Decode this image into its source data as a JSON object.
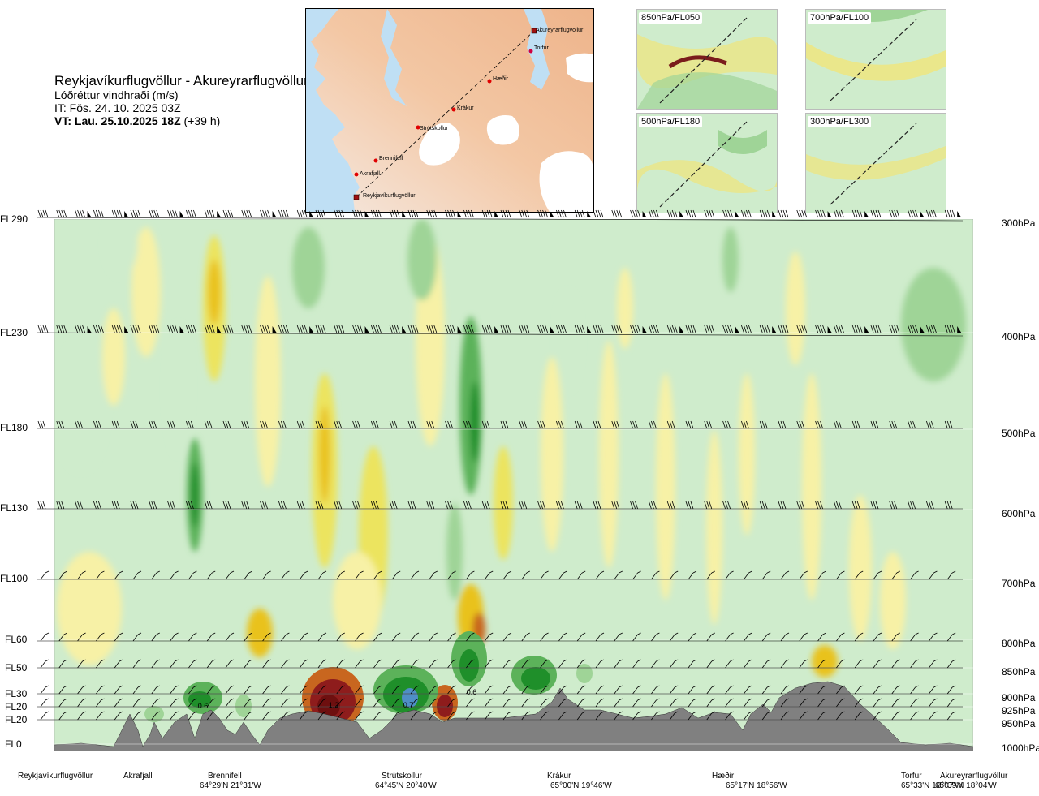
{
  "title": {
    "route": "Reykjavíkurflugvöllur - Akureyrarflugvöllur",
    "variable": "Lóðréttur vindhraði (m/s)",
    "issue_time": "IT: Fös. 24. 10. 2025 03Z",
    "valid_time": "VT: Lau. 25.10.2025 18Z",
    "lead": "(+39 h)"
  },
  "map": {
    "waypoints": [
      "Reykjavíkurflugvöllur",
      "Akrafjall",
      "Brennifell",
      "Strútskollur",
      "Krákur",
      "Hæðir",
      "Torfur",
      "Akureyrarflugvöllur"
    ]
  },
  "mini_maps": [
    {
      "label": "850hPa/FL050"
    },
    {
      "label": "700hPa/FL100"
    },
    {
      "label": "500hPa/FL180"
    },
    {
      "label": "300hPa/FL300"
    }
  ],
  "chart_data": {
    "type": "heatmap",
    "title": "Lóðréttur vindhraði (m/s)",
    "left_axis": [
      "FL290",
      "FL230",
      "FL180",
      "FL130",
      "FL100",
      "FL60",
      "FL50",
      "FL30",
      "FL20",
      "FL20",
      "FL0"
    ],
    "right_axis": [
      "300hPa",
      "400hPa",
      "500hPa",
      "600hPa",
      "700hPa",
      "800hPa",
      "850hPa",
      "900hPa",
      "925hPa",
      "950hPa",
      "1000hPa"
    ],
    "pressure_levels": [
      300,
      400,
      500,
      600,
      700,
      800,
      850,
      900,
      925,
      950,
      1000
    ],
    "contour_labels": [
      "0.6",
      "1.2",
      "0.7",
      "0.6"
    ],
    "colors": {
      "weak_down": "#f7f1a6",
      "moderate_down": "#ece45e",
      "strong_down": "#e9c21b",
      "very_strong_down": "#c8661f",
      "extreme_down": "#8e1c1c",
      "weak_up": "#cfeccc",
      "moderate_up": "#9fd497",
      "strong_up": "#5cb25a",
      "very_strong_up": "#1f8f2a",
      "extreme_up": "#4f8ec6",
      "terrain": "#808080"
    },
    "bottom_sites": [
      {
        "name": "Reykjavíkurflugvöllur",
        "coord": ""
      },
      {
        "name": "Akrafjall",
        "coord": ""
      },
      {
        "name": "Brennifell",
        "coord": "64°29'N 21°31'W"
      },
      {
        "name": "Strútskollur",
        "coord": "64°45'N 20°40'W"
      },
      {
        "name": "Krákur",
        "coord": "65°00'N 19°46'W"
      },
      {
        "name": "Hæðir",
        "coord": "65°17'N 18°56'W"
      },
      {
        "name": "Torfur",
        "coord": "65°33'N 18°07'W"
      },
      {
        "name": "Akureyrarflugvöllur",
        "coord": "65°39'N 18°04'W"
      }
    ]
  }
}
